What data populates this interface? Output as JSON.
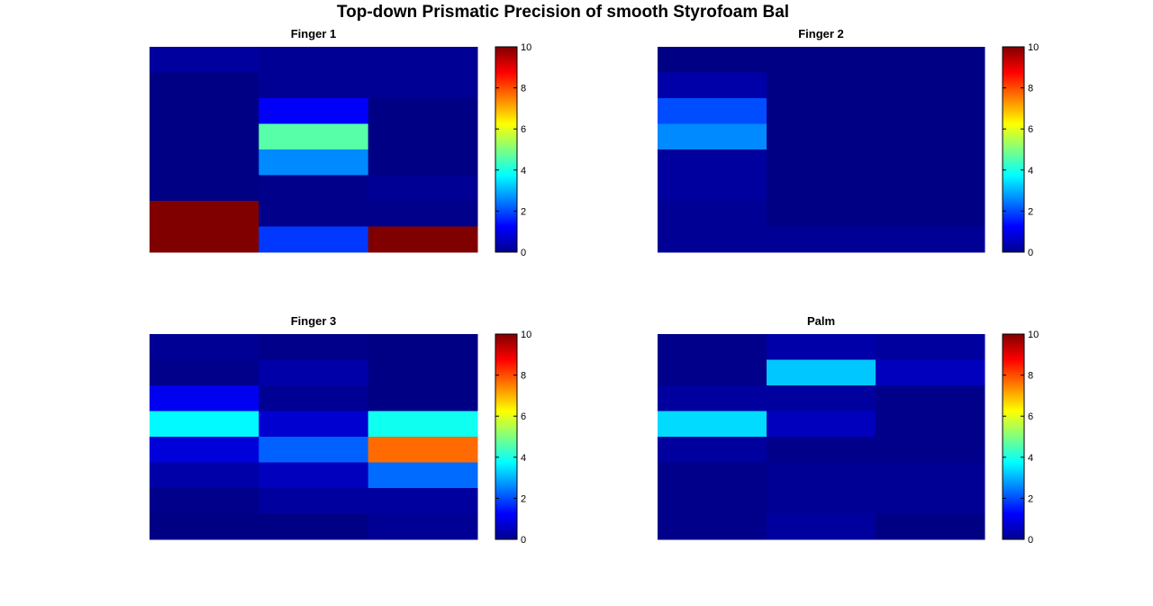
{
  "figure": {
    "title": "Top-down Prismatic Precision of smooth Styrofoam Bal"
  },
  "colormap": {
    "name": "jet",
    "range": [
      0,
      10
    ],
    "ticks": [
      0,
      2,
      4,
      6,
      8,
      10
    ]
  },
  "chart_data": [
    {
      "type": "heatmap",
      "title": "Finger 1",
      "rows": 8,
      "cols": 3,
      "clim": [
        0,
        10
      ],
      "values": [
        [
          0.3,
          0.2,
          0.2
        ],
        [
          0.05,
          0.2,
          0.2
        ],
        [
          0.05,
          1.2,
          0.05
        ],
        [
          0.05,
          4.6,
          0.05
        ],
        [
          0.05,
          2.6,
          0.05
        ],
        [
          0.05,
          0.1,
          0.2
        ],
        [
          10,
          0.1,
          0.1
        ],
        [
          10,
          1.8,
          10
        ]
      ]
    },
    {
      "type": "heatmap",
      "title": "Finger 2",
      "rows": 8,
      "cols": 3,
      "clim": [
        0,
        10
      ],
      "values": [
        [
          0.05,
          0.05,
          0.05
        ],
        [
          0.4,
          0.05,
          0.05
        ],
        [
          2.0,
          0.05,
          0.05
        ],
        [
          2.6,
          0.05,
          0.05
        ],
        [
          0.3,
          0.05,
          0.05
        ],
        [
          0.3,
          0.05,
          0.05
        ],
        [
          0.2,
          0.05,
          0.05
        ],
        [
          0.2,
          0.2,
          0.2
        ]
      ]
    },
    {
      "type": "heatmap",
      "title": "Finger 3",
      "rows": 8,
      "cols": 3,
      "clim": [
        0,
        10
      ],
      "values": [
        [
          0.2,
          0.1,
          0.05
        ],
        [
          0.1,
          0.4,
          0.05
        ],
        [
          1.1,
          0.2,
          0.05
        ],
        [
          3.7,
          0.8,
          3.9
        ],
        [
          0.9,
          2.2,
          7.7
        ],
        [
          0.4,
          0.6,
          2.3
        ],
        [
          0.1,
          0.3,
          0.3
        ],
        [
          0.05,
          0.05,
          0.2
        ]
      ]
    },
    {
      "type": "heatmap",
      "title": "Palm",
      "rows": 8,
      "cols": 3,
      "clim": [
        0,
        10
      ],
      "values": [
        [
          0.1,
          0.4,
          0.3
        ],
        [
          0.1,
          3.2,
          0.6
        ],
        [
          0.3,
          0.3,
          0.1
        ],
        [
          3.4,
          0.6,
          0.1
        ],
        [
          0.3,
          0.1,
          0.1
        ],
        [
          0.1,
          0.2,
          0.2
        ],
        [
          0.1,
          0.2,
          0.2
        ],
        [
          0.1,
          0.3,
          0.05
        ]
      ]
    }
  ]
}
